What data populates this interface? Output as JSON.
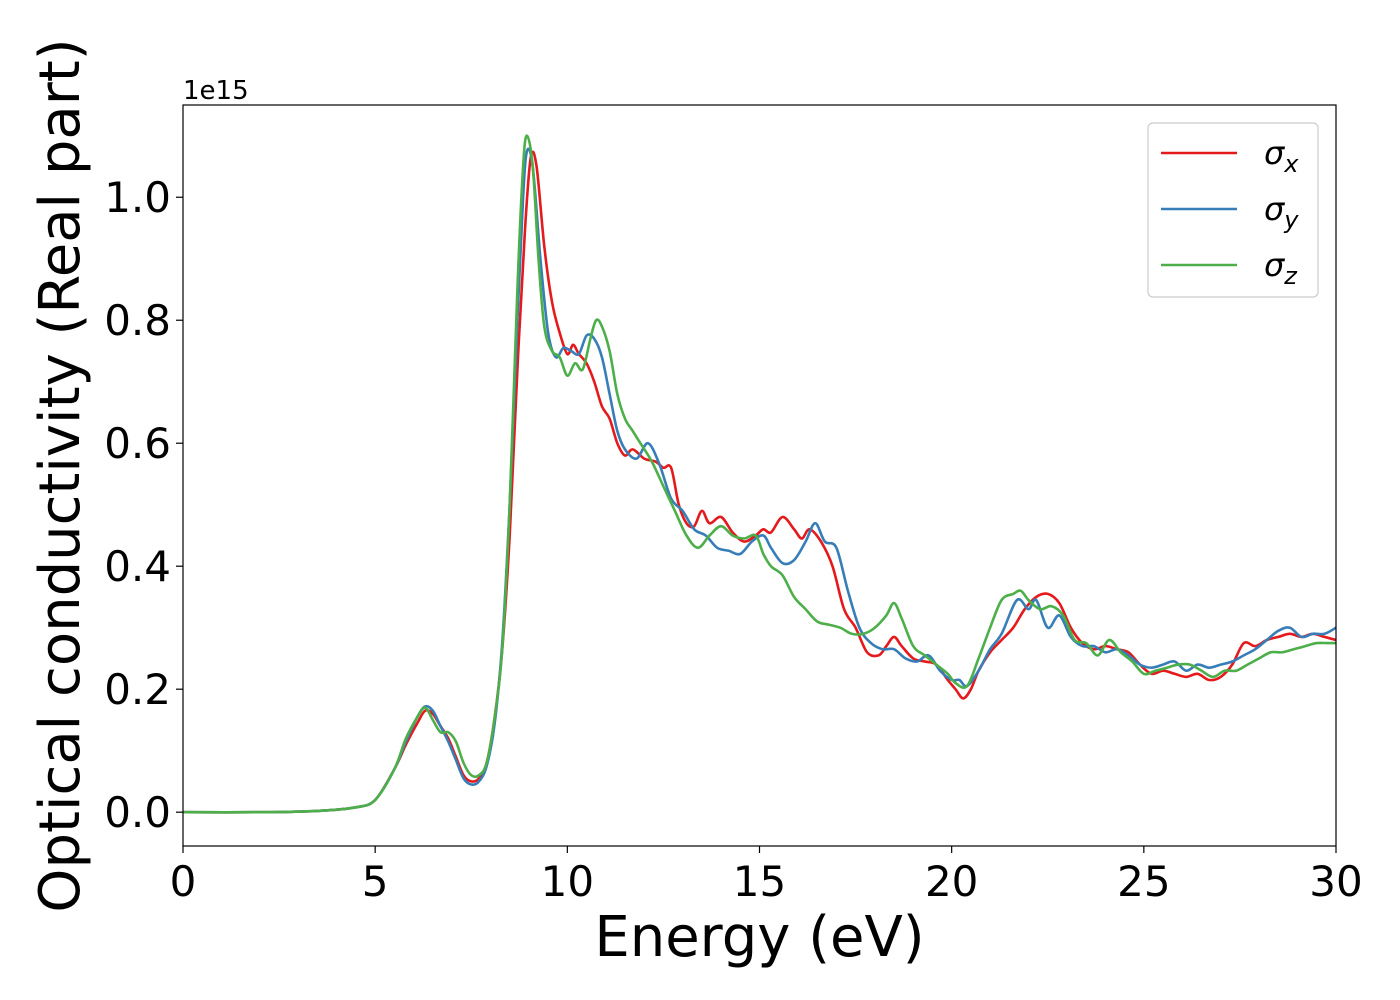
{
  "chart_data": {
    "type": "line",
    "title": "",
    "xlabel": "Energy (eV)",
    "ylabel": "Optical conductivity (Real part)",
    "y_offset_label": "1e15",
    "y_scale_factor": 1000000000000000.0,
    "xlim": [
      0,
      30
    ],
    "ylim": [
      -0.055,
      1.15
    ],
    "x_ticks": [
      0,
      5,
      10,
      15,
      20,
      25,
      30
    ],
    "x_tick_labels": [
      "0",
      "5",
      "10",
      "15",
      "20",
      "25",
      "30"
    ],
    "y_ticks": [
      0.0,
      0.2,
      0.4,
      0.6,
      0.8,
      1.0
    ],
    "y_tick_labels": [
      "0.0",
      "0.2",
      "0.4",
      "0.6",
      "0.8",
      "1.0"
    ],
    "grid": false,
    "legend_position": "top-right",
    "series": [
      {
        "name": "σx",
        "color": "#e41a1c",
        "points": [
          [
            0,
            0
          ],
          [
            2,
            0
          ],
          [
            3.5,
            0.002
          ],
          [
            4.5,
            0.008
          ],
          [
            5,
            0.02
          ],
          [
            5.5,
            0.07
          ],
          [
            5.8,
            0.11
          ],
          [
            6.1,
            0.145
          ],
          [
            6.3,
            0.165
          ],
          [
            6.5,
            0.16
          ],
          [
            6.7,
            0.14
          ],
          [
            6.9,
            0.12
          ],
          [
            7.1,
            0.09
          ],
          [
            7.3,
            0.06
          ],
          [
            7.5,
            0.05
          ],
          [
            7.7,
            0.055
          ],
          [
            7.9,
            0.08
          ],
          [
            8.1,
            0.15
          ],
          [
            8.3,
            0.26
          ],
          [
            8.5,
            0.45
          ],
          [
            8.7,
            0.72
          ],
          [
            8.9,
            0.95
          ],
          [
            9.05,
            1.065
          ],
          [
            9.2,
            1.05
          ],
          [
            9.4,
            0.92
          ],
          [
            9.6,
            0.83
          ],
          [
            9.8,
            0.78
          ],
          [
            10.0,
            0.745
          ],
          [
            10.15,
            0.76
          ],
          [
            10.3,
            0.745
          ],
          [
            10.5,
            0.73
          ],
          [
            10.7,
            0.7
          ],
          [
            10.9,
            0.66
          ],
          [
            11.1,
            0.64
          ],
          [
            11.3,
            0.6
          ],
          [
            11.5,
            0.58
          ],
          [
            11.7,
            0.59
          ],
          [
            12.0,
            0.575
          ],
          [
            12.3,
            0.57
          ],
          [
            12.5,
            0.56
          ],
          [
            12.7,
            0.56
          ],
          [
            12.9,
            0.5
          ],
          [
            13.1,
            0.47
          ],
          [
            13.3,
            0.465
          ],
          [
            13.5,
            0.49
          ],
          [
            13.7,
            0.47
          ],
          [
            14.0,
            0.48
          ],
          [
            14.3,
            0.455
          ],
          [
            14.6,
            0.44
          ],
          [
            14.9,
            0.45
          ],
          [
            15.1,
            0.46
          ],
          [
            15.3,
            0.455
          ],
          [
            15.6,
            0.48
          ],
          [
            15.9,
            0.46
          ],
          [
            16.1,
            0.445
          ],
          [
            16.3,
            0.46
          ],
          [
            16.6,
            0.44
          ],
          [
            16.9,
            0.4
          ],
          [
            17.2,
            0.33
          ],
          [
            17.5,
            0.3
          ],
          [
            17.8,
            0.26
          ],
          [
            18.1,
            0.255
          ],
          [
            18.3,
            0.27
          ],
          [
            18.5,
            0.285
          ],
          [
            18.7,
            0.27
          ],
          [
            19.0,
            0.25
          ],
          [
            19.3,
            0.245
          ],
          [
            19.6,
            0.24
          ],
          [
            19.9,
            0.215
          ],
          [
            20.1,
            0.2
          ],
          [
            20.3,
            0.185
          ],
          [
            20.5,
            0.2
          ],
          [
            20.7,
            0.23
          ],
          [
            21.0,
            0.26
          ],
          [
            21.3,
            0.28
          ],
          [
            21.6,
            0.3
          ],
          [
            21.9,
            0.33
          ],
          [
            22.2,
            0.35
          ],
          [
            22.5,
            0.355
          ],
          [
            22.8,
            0.34
          ],
          [
            23.1,
            0.3
          ],
          [
            23.4,
            0.275
          ],
          [
            23.7,
            0.265
          ],
          [
            24.0,
            0.27
          ],
          [
            24.3,
            0.265
          ],
          [
            24.6,
            0.26
          ],
          [
            24.9,
            0.24
          ],
          [
            25.2,
            0.225
          ],
          [
            25.5,
            0.23
          ],
          [
            25.8,
            0.225
          ],
          [
            26.1,
            0.22
          ],
          [
            26.4,
            0.225
          ],
          [
            26.7,
            0.215
          ],
          [
            27.0,
            0.22
          ],
          [
            27.3,
            0.24
          ],
          [
            27.6,
            0.275
          ],
          [
            27.9,
            0.27
          ],
          [
            28.2,
            0.28
          ],
          [
            28.5,
            0.285
          ],
          [
            28.8,
            0.29
          ],
          [
            29.1,
            0.285
          ],
          [
            29.4,
            0.29
          ],
          [
            29.7,
            0.285
          ],
          [
            30,
            0.28
          ]
        ]
      },
      {
        "name": "σy",
        "color": "#377eb8",
        "points": [
          [
            0,
            0
          ],
          [
            2,
            0
          ],
          [
            3.5,
            0.002
          ],
          [
            4.5,
            0.008
          ],
          [
            5,
            0.02
          ],
          [
            5.5,
            0.07
          ],
          [
            5.8,
            0.115
          ],
          [
            6.1,
            0.155
          ],
          [
            6.3,
            0.172
          ],
          [
            6.5,
            0.165
          ],
          [
            6.7,
            0.14
          ],
          [
            6.9,
            0.115
          ],
          [
            7.1,
            0.085
          ],
          [
            7.3,
            0.055
          ],
          [
            7.5,
            0.045
          ],
          [
            7.7,
            0.05
          ],
          [
            7.9,
            0.075
          ],
          [
            8.1,
            0.14
          ],
          [
            8.3,
            0.27
          ],
          [
            8.5,
            0.5
          ],
          [
            8.7,
            0.8
          ],
          [
            8.85,
            1.0
          ],
          [
            8.95,
            1.075
          ],
          [
            9.1,
            1.05
          ],
          [
            9.3,
            0.9
          ],
          [
            9.5,
            0.78
          ],
          [
            9.7,
            0.74
          ],
          [
            9.9,
            0.755
          ],
          [
            10.1,
            0.75
          ],
          [
            10.3,
            0.745
          ],
          [
            10.5,
            0.775
          ],
          [
            10.7,
            0.77
          ],
          [
            10.9,
            0.74
          ],
          [
            11.1,
            0.68
          ],
          [
            11.3,
            0.62
          ],
          [
            11.5,
            0.59
          ],
          [
            11.8,
            0.575
          ],
          [
            12.1,
            0.6
          ],
          [
            12.4,
            0.565
          ],
          [
            12.7,
            0.51
          ],
          [
            13.0,
            0.49
          ],
          [
            13.3,
            0.46
          ],
          [
            13.6,
            0.45
          ],
          [
            13.9,
            0.43
          ],
          [
            14.2,
            0.425
          ],
          [
            14.5,
            0.42
          ],
          [
            14.8,
            0.44
          ],
          [
            15.1,
            0.45
          ],
          [
            15.3,
            0.43
          ],
          [
            15.6,
            0.405
          ],
          [
            15.9,
            0.41
          ],
          [
            16.2,
            0.44
          ],
          [
            16.45,
            0.47
          ],
          [
            16.7,
            0.44
          ],
          [
            17.0,
            0.43
          ],
          [
            17.3,
            0.36
          ],
          [
            17.6,
            0.3
          ],
          [
            17.9,
            0.275
          ],
          [
            18.2,
            0.265
          ],
          [
            18.5,
            0.265
          ],
          [
            18.8,
            0.25
          ],
          [
            19.1,
            0.245
          ],
          [
            19.4,
            0.255
          ],
          [
            19.7,
            0.23
          ],
          [
            20.0,
            0.215
          ],
          [
            20.2,
            0.215
          ],
          [
            20.4,
            0.205
          ],
          [
            20.7,
            0.23
          ],
          [
            21.0,
            0.265
          ],
          [
            21.3,
            0.29
          ],
          [
            21.7,
            0.345
          ],
          [
            22.0,
            0.33
          ],
          [
            22.2,
            0.345
          ],
          [
            22.5,
            0.3
          ],
          [
            22.8,
            0.32
          ],
          [
            23.1,
            0.285
          ],
          [
            23.4,
            0.27
          ],
          [
            23.7,
            0.27
          ],
          [
            24.0,
            0.26
          ],
          [
            24.3,
            0.265
          ],
          [
            24.6,
            0.255
          ],
          [
            24.9,
            0.24
          ],
          [
            25.2,
            0.235
          ],
          [
            25.5,
            0.24
          ],
          [
            25.8,
            0.245
          ],
          [
            26.1,
            0.23
          ],
          [
            26.4,
            0.24
          ],
          [
            26.7,
            0.235
          ],
          [
            27.0,
            0.24
          ],
          [
            27.3,
            0.245
          ],
          [
            27.6,
            0.255
          ],
          [
            27.9,
            0.265
          ],
          [
            28.2,
            0.28
          ],
          [
            28.5,
            0.295
          ],
          [
            28.8,
            0.3
          ],
          [
            29.1,
            0.285
          ],
          [
            29.4,
            0.29
          ],
          [
            29.7,
            0.29
          ],
          [
            30,
            0.3
          ]
        ]
      },
      {
        "name": "σz",
        "color": "#4daf4a",
        "points": [
          [
            0,
            0
          ],
          [
            2,
            0
          ],
          [
            3.5,
            0.002
          ],
          [
            4.5,
            0.008
          ],
          [
            5,
            0.02
          ],
          [
            5.5,
            0.07
          ],
          [
            5.8,
            0.12
          ],
          [
            6.1,
            0.155
          ],
          [
            6.3,
            0.17
          ],
          [
            6.5,
            0.15
          ],
          [
            6.7,
            0.13
          ],
          [
            6.9,
            0.13
          ],
          [
            7.1,
            0.115
          ],
          [
            7.3,
            0.08
          ],
          [
            7.5,
            0.06
          ],
          [
            7.7,
            0.06
          ],
          [
            7.9,
            0.08
          ],
          [
            8.1,
            0.15
          ],
          [
            8.3,
            0.26
          ],
          [
            8.5,
            0.5
          ],
          [
            8.7,
            0.85
          ],
          [
            8.85,
            1.05
          ],
          [
            8.95,
            1.1
          ],
          [
            9.1,
            1.05
          ],
          [
            9.25,
            0.9
          ],
          [
            9.4,
            0.79
          ],
          [
            9.6,
            0.75
          ],
          [
            9.8,
            0.74
          ],
          [
            10.0,
            0.71
          ],
          [
            10.2,
            0.73
          ],
          [
            10.4,
            0.72
          ],
          [
            10.6,
            0.77
          ],
          [
            10.75,
            0.8
          ],
          [
            10.9,
            0.79
          ],
          [
            11.1,
            0.75
          ],
          [
            11.3,
            0.68
          ],
          [
            11.5,
            0.64
          ],
          [
            11.7,
            0.62
          ],
          [
            11.9,
            0.6
          ],
          [
            12.2,
            0.57
          ],
          [
            12.5,
            0.53
          ],
          [
            12.8,
            0.49
          ],
          [
            13.1,
            0.45
          ],
          [
            13.4,
            0.43
          ],
          [
            13.7,
            0.45
          ],
          [
            14.0,
            0.465
          ],
          [
            14.3,
            0.45
          ],
          [
            14.6,
            0.445
          ],
          [
            14.9,
            0.45
          ],
          [
            15.1,
            0.42
          ],
          [
            15.3,
            0.4
          ],
          [
            15.6,
            0.385
          ],
          [
            15.9,
            0.35
          ],
          [
            16.2,
            0.33
          ],
          [
            16.5,
            0.31
          ],
          [
            16.8,
            0.305
          ],
          [
            17.1,
            0.3
          ],
          [
            17.4,
            0.29
          ],
          [
            17.7,
            0.29
          ],
          [
            18.0,
            0.3
          ],
          [
            18.3,
            0.32
          ],
          [
            18.5,
            0.34
          ],
          [
            18.7,
            0.315
          ],
          [
            19.0,
            0.27
          ],
          [
            19.3,
            0.255
          ],
          [
            19.6,
            0.24
          ],
          [
            19.9,
            0.225
          ],
          [
            20.1,
            0.21
          ],
          [
            20.4,
            0.205
          ],
          [
            20.7,
            0.25
          ],
          [
            21.0,
            0.3
          ],
          [
            21.3,
            0.345
          ],
          [
            21.6,
            0.355
          ],
          [
            21.8,
            0.36
          ],
          [
            22.0,
            0.345
          ],
          [
            22.3,
            0.33
          ],
          [
            22.6,
            0.335
          ],
          [
            22.9,
            0.32
          ],
          [
            23.2,
            0.28
          ],
          [
            23.5,
            0.275
          ],
          [
            23.8,
            0.255
          ],
          [
            24.1,
            0.28
          ],
          [
            24.4,
            0.26
          ],
          [
            24.7,
            0.245
          ],
          [
            25.0,
            0.225
          ],
          [
            25.3,
            0.23
          ],
          [
            25.6,
            0.235
          ],
          [
            25.9,
            0.24
          ],
          [
            26.2,
            0.24
          ],
          [
            26.5,
            0.23
          ],
          [
            26.8,
            0.22
          ],
          [
            27.1,
            0.23
          ],
          [
            27.4,
            0.23
          ],
          [
            27.7,
            0.24
          ],
          [
            28.0,
            0.25
          ],
          [
            28.3,
            0.26
          ],
          [
            28.6,
            0.26
          ],
          [
            28.9,
            0.265
          ],
          [
            29.2,
            0.27
          ],
          [
            29.5,
            0.275
          ],
          [
            29.8,
            0.275
          ],
          [
            30,
            0.275
          ]
        ]
      }
    ]
  }
}
